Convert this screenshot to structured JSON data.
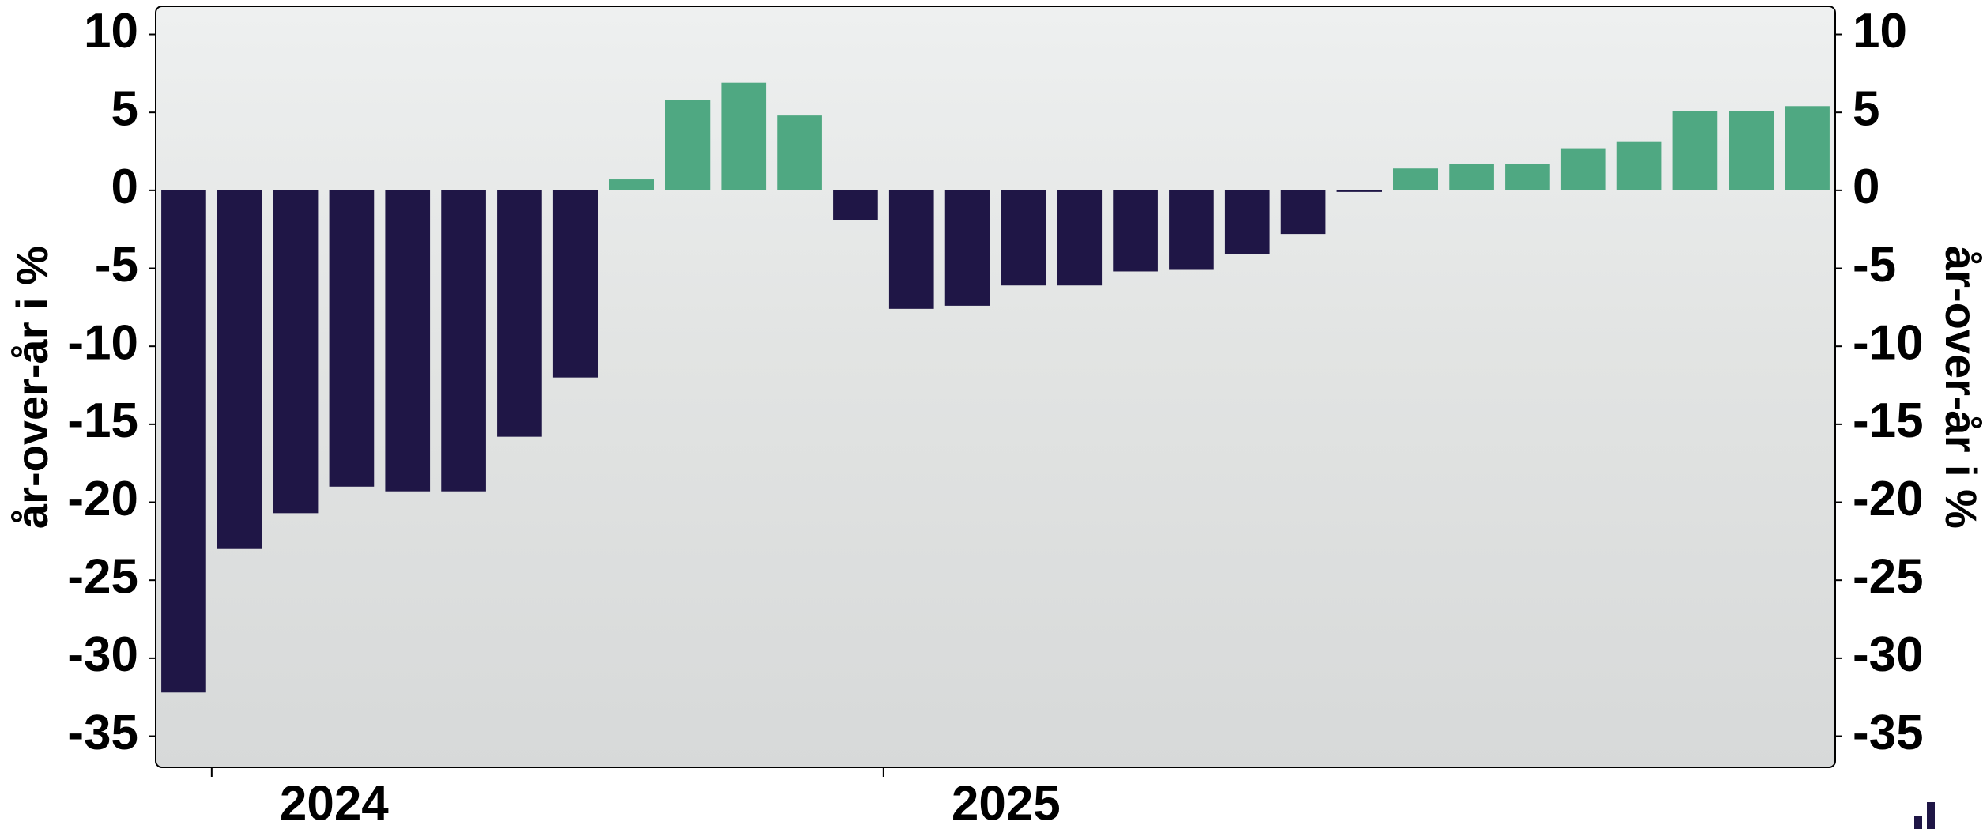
{
  "chart_data": {
    "type": "bar",
    "y_label": "år-over-år i %",
    "categories": [
      null,
      null,
      null,
      null,
      null,
      null,
      null,
      null,
      null,
      null,
      null,
      null,
      null,
      null,
      null,
      null,
      null,
      null,
      null,
      null,
      null,
      null,
      null,
      null,
      null,
      null,
      null,
      null,
      null,
      null
    ],
    "values": [
      -32.2,
      -23,
      -20.7,
      -19,
      -19.3,
      -19.3,
      -15.8,
      -12,
      0.7,
      5.8,
      6.9,
      4.8,
      -1.9,
      -7.6,
      -7.4,
      -6.1,
      -6.1,
      -5.2,
      -5.1,
      -4.1,
      -2.8,
      -0.1,
      1.4,
      1.7,
      1.7,
      2.7,
      3.1,
      5.1,
      5.1,
      5.4
    ],
    "positive_color": "#4fa882",
    "negative_color": "#1f1646",
    "xlim": [
      -0.5,
      29.5
    ],
    "xticks": [
      {
        "value": 0.5,
        "label": "2024"
      },
      {
        "value": 12.5,
        "label": "2025"
      }
    ],
    "ylim": [
      -37,
      11.8
    ],
    "yticks": [
      -35,
      -30,
      -25,
      -20,
      -15,
      -10,
      -5,
      0,
      5,
      10
    ],
    "y2lim": [
      -37,
      11.8
    ],
    "y2ticks": [
      -35,
      -30,
      -25,
      -20,
      -15,
      -10,
      -5,
      0,
      5,
      10
    ]
  }
}
